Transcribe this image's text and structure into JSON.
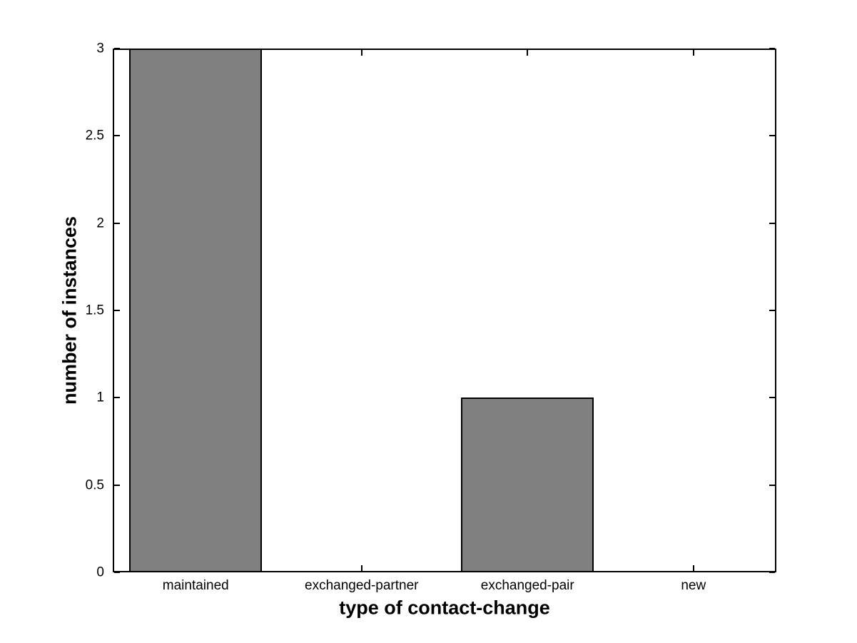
{
  "chart_data": {
    "type": "bar",
    "title": "",
    "categories": [
      "maintained",
      "exchanged-partner",
      "exchanged-pair",
      "new"
    ],
    "values": [
      3,
      0,
      1,
      0
    ],
    "xlabel": "type of contact-change",
    "ylabel": "number of instances",
    "ylim": [
      0,
      3
    ],
    "yticks": [
      0,
      0.5,
      1,
      1.5,
      2,
      2.5,
      3
    ],
    "ytick_labels": [
      "0",
      "0.5",
      "1",
      "1.5",
      "2",
      "2.5",
      "3"
    ],
    "bar_relative_width": 0.8,
    "bar_color": "#808080",
    "bar_edge_color": "#000000",
    "axis_color": "#000000",
    "background_color": "#ffffff",
    "grid": false,
    "box": true,
    "legend": null
  }
}
